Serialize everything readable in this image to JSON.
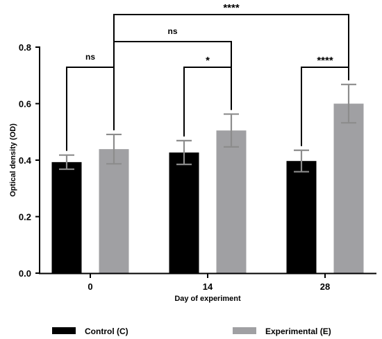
{
  "chart_data": {
    "type": "bar",
    "categories": [
      "0",
      "14",
      "28"
    ],
    "series": [
      {
        "name": "Control (C)",
        "color": "#000000",
        "values": [
          0.393,
          0.427,
          0.397
        ],
        "errors": [
          0.025,
          0.042,
          0.038
        ]
      },
      {
        "name": "Experimental (E)",
        "color": "#a0a0a3",
        "values": [
          0.439,
          0.505,
          0.6
        ],
        "errors": [
          0.052,
          0.058,
          0.068
        ]
      }
    ],
    "xlabel": "Day of experiment",
    "ylabel": "Optical density (OD)",
    "ylim": [
      0,
      0.8
    ],
    "yticks": [
      "0.0",
      "0.2",
      "0.4",
      "0.6",
      "0.8"
    ],
    "legend_position": "bottom",
    "error_bar_color": "#8c8c8c",
    "significance": [
      {
        "from": [
          0,
          0
        ],
        "to": [
          0,
          1
        ],
        "label": "ns"
      },
      {
        "from": [
          1,
          0
        ],
        "to": [
          1,
          1
        ],
        "label": "*"
      },
      {
        "from": [
          2,
          0
        ],
        "to": [
          2,
          1
        ],
        "label": "****"
      },
      {
        "from": [
          0,
          1
        ],
        "to": [
          1,
          1
        ],
        "label": "ns"
      },
      {
        "from": [
          0,
          1
        ],
        "to": [
          2,
          1
        ],
        "label": "****"
      }
    ]
  }
}
